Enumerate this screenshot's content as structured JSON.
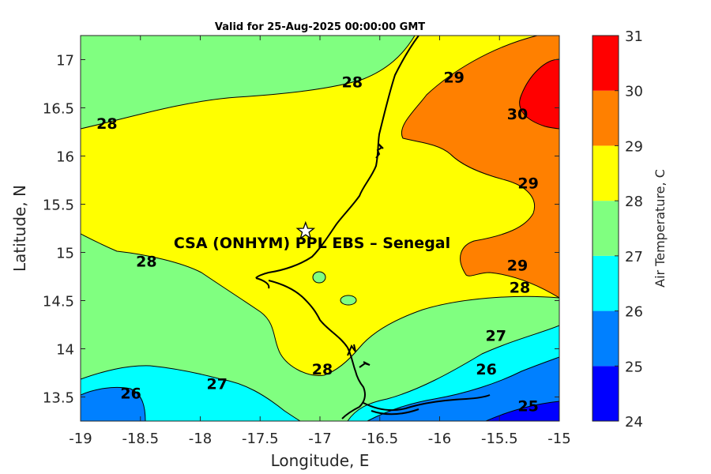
{
  "chart_data": {
    "type": "filled-contour-map",
    "title": "Valid for 25-Aug-2025 00:00:00 GMT",
    "xlabel": "Longitude, E",
    "ylabel": "Latitude, N",
    "xlim": [
      -19,
      -15
    ],
    "ylim": [
      13.25,
      17.25
    ],
    "xticks": [
      "-19",
      "-18.5",
      "-18",
      "-17.5",
      "-17",
      "-16.5",
      "-16",
      "-15.5",
      "-15"
    ],
    "yticks": [
      "13.5",
      "14",
      "14.5",
      "15",
      "15.5",
      "16",
      "16.5",
      "17"
    ],
    "colorbar": {
      "label": "Air Temperature, C",
      "levels": [
        24,
        25,
        26,
        27,
        28,
        29,
        30,
        31
      ],
      "ticks": [
        "24",
        "25",
        "26",
        "27",
        "28",
        "29",
        "30",
        "31"
      ],
      "colors": [
        "#0000ff",
        "#0080ff",
        "#00ffff",
        "#80ff80",
        "#ffff00",
        "#ff8000",
        "#ff0000",
        "#800000"
      ]
    },
    "contour_labels": [
      {
        "text": "28",
        "lon": -18.78,
        "lat": 16.34
      },
      {
        "text": "28",
        "lon": -16.73,
        "lat": 16.77
      },
      {
        "text": "29",
        "lon": -15.88,
        "lat": 16.82
      },
      {
        "text": "30",
        "lon": -15.35,
        "lat": 16.44
      },
      {
        "text": "29",
        "lon": -15.26,
        "lat": 15.72
      },
      {
        "text": "28",
        "lon": -18.45,
        "lat": 14.91
      },
      {
        "text": "29",
        "lon": -15.35,
        "lat": 14.87
      },
      {
        "text": "28",
        "lon": -15.33,
        "lat": 14.64
      },
      {
        "text": "27",
        "lon": -15.53,
        "lat": 14.14
      },
      {
        "text": "28",
        "lon": -16.98,
        "lat": 13.79
      },
      {
        "text": "27",
        "lon": -17.86,
        "lat": 13.64
      },
      {
        "text": "26",
        "lon": -15.61,
        "lat": 13.79
      },
      {
        "text": "26",
        "lon": -18.58,
        "lat": 13.54
      },
      {
        "text": "25",
        "lon": -15.26,
        "lat": 13.41
      }
    ],
    "site": {
      "name": "CSA (ONHYM) PPL EBS  – Senegal",
      "lon": -17.12,
      "lat": 15.22,
      "marker": "star"
    }
  }
}
